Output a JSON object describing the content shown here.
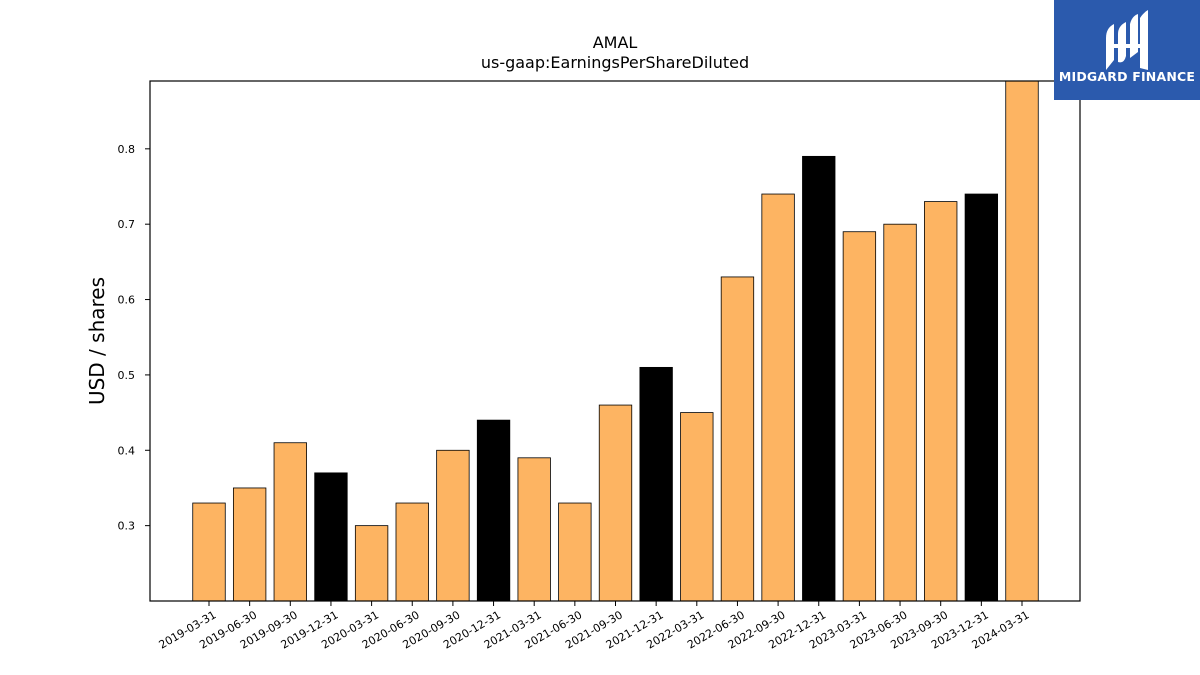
{
  "chart_data": {
    "type": "bar",
    "title": "AMAL",
    "subtitle": "us-gaap:EarningsPerShareDiluted",
    "xlabel": "",
    "ylabel": "USD / shares",
    "ylim": [
      0.2,
      0.89
    ],
    "yticks": [
      0.3,
      0.4,
      0.5,
      0.6,
      0.7,
      0.8
    ],
    "grid": false,
    "categories": [
      "2019-03-31",
      "2019-06-30",
      "2019-09-30",
      "2019-12-31",
      "2020-03-31",
      "2020-06-30",
      "2020-09-30",
      "2020-12-31",
      "2021-03-31",
      "2021-06-30",
      "2021-09-30",
      "2021-12-31",
      "2022-03-31",
      "2022-06-30",
      "2022-09-30",
      "2022-12-31",
      "2023-03-31",
      "2023-06-30",
      "2023-09-30",
      "2023-12-31",
      "2024-03-31"
    ],
    "values": [
      0.33,
      0.35,
      0.41,
      0.37,
      0.3,
      0.33,
      0.4,
      0.44,
      0.39,
      0.33,
      0.46,
      0.51,
      0.45,
      0.63,
      0.74,
      0.79,
      0.69,
      0.7,
      0.73,
      0.74,
      0.89
    ],
    "colors": {
      "quarter": "#fdb462",
      "year_end": "#000000",
      "edge": "#000000"
    }
  },
  "logo": {
    "text": "MIDGARD FINANCE",
    "background": "#2b5aad",
    "icon": "midgard-logo-icon"
  }
}
